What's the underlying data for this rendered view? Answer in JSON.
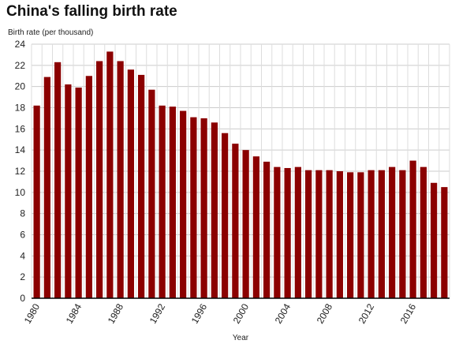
{
  "chart_data": {
    "type": "bar",
    "title": "China's falling birth rate",
    "ylabel": "Birth rate (per thousand)",
    "xlabel": "Year",
    "ylim": [
      0,
      24
    ],
    "yticks": [
      0,
      2,
      4,
      6,
      8,
      10,
      12,
      14,
      16,
      18,
      20,
      22,
      24
    ],
    "grid": true,
    "bar_color": "#8b0000",
    "categories": [
      "1980",
      "1981",
      "1982",
      "1983",
      "1984",
      "1985",
      "1986",
      "1987",
      "1988",
      "1989",
      "1990",
      "1991",
      "1992",
      "1993",
      "1994",
      "1995",
      "1996",
      "1997",
      "1998",
      "1999",
      "2000",
      "2001",
      "2002",
      "2003",
      "2004",
      "2005",
      "2006",
      "2007",
      "2008",
      "2009",
      "2010",
      "2011",
      "2012",
      "2013",
      "2014",
      "2015",
      "2016",
      "2017",
      "2018",
      "2019"
    ],
    "xtick_labels": [
      "1980",
      "1984",
      "1988",
      "1992",
      "1996",
      "2000",
      "2004",
      "2008",
      "2012",
      "2016"
    ],
    "values": [
      18.2,
      20.9,
      22.3,
      20.2,
      19.9,
      21.0,
      22.4,
      23.3,
      22.4,
      21.6,
      21.1,
      19.7,
      18.2,
      18.1,
      17.7,
      17.1,
      17.0,
      16.6,
      15.6,
      14.6,
      14.0,
      13.4,
      12.9,
      12.4,
      12.3,
      12.4,
      12.1,
      12.1,
      12.1,
      12.0,
      11.9,
      11.9,
      12.1,
      12.1,
      12.4,
      12.1,
      13.0,
      12.4,
      10.9,
      10.5
    ]
  }
}
